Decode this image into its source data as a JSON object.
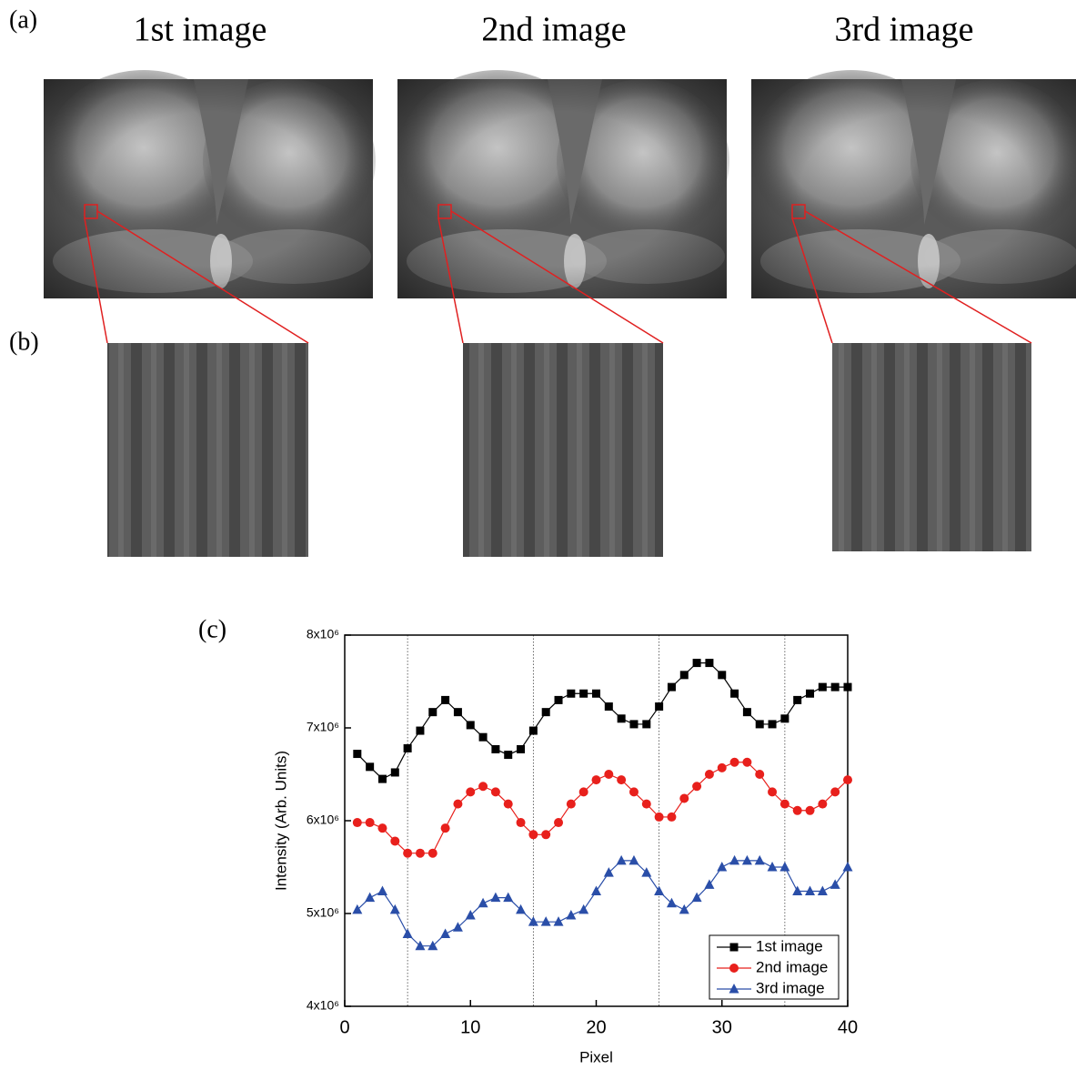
{
  "figure": {
    "panel_a": "(a)",
    "panel_b": "(b)",
    "panel_c": "(c)",
    "titles": [
      "1st image",
      "2nd image",
      "3rd image"
    ]
  },
  "chart_data": {
    "type": "line",
    "x_label": "Pixel",
    "y_label": "Intensity (Arb. Units)",
    "x": [
      1,
      2,
      3,
      4,
      5,
      6,
      7,
      8,
      9,
      10,
      11,
      12,
      13,
      14,
      15,
      16,
      17,
      18,
      19,
      20,
      21,
      22,
      23,
      24,
      25,
      26,
      27,
      28,
      29,
      30,
      31,
      32,
      33,
      34,
      35,
      36,
      37,
      38,
      39,
      40
    ],
    "series": [
      {
        "name": "1st image",
        "color": "#000000",
        "marker": "square",
        "values": [
          6720000,
          6580000,
          6450000,
          6520000,
          6780000,
          6970000,
          7170000,
          7300000,
          7170000,
          7030000,
          6900000,
          6770000,
          6710000,
          6770000,
          6970000,
          7170000,
          7300000,
          7370000,
          7370000,
          7370000,
          7230000,
          7100000,
          7040000,
          7040000,
          7230000,
          7440000,
          7570000,
          7700000,
          7700000,
          7570000,
          7370000,
          7170000,
          7040000,
          7040000,
          7100000,
          7300000,
          7370000,
          7440000,
          7440000,
          7440000
        ]
      },
      {
        "name": "2nd image",
        "color": "#e8201c",
        "marker": "circle",
        "values": [
          5980000,
          5980000,
          5920000,
          5780000,
          5650000,
          5650000,
          5650000,
          5920000,
          6180000,
          6310000,
          6370000,
          6310000,
          6180000,
          5980000,
          5850000,
          5850000,
          5980000,
          6180000,
          6310000,
          6440000,
          6500000,
          6440000,
          6310000,
          6180000,
          6040000,
          6040000,
          6240000,
          6370000,
          6500000,
          6570000,
          6630000,
          6630000,
          6500000,
          6310000,
          6180000,
          6110000,
          6110000,
          6180000,
          6310000,
          6440000
        ]
      },
      {
        "name": "3rd image",
        "color": "#2a4ea8",
        "marker": "triangle",
        "values": [
          5040000,
          5170000,
          5240000,
          5040000,
          4780000,
          4650000,
          4650000,
          4780000,
          4850000,
          4980000,
          5110000,
          5170000,
          5170000,
          5040000,
          4910000,
          4910000,
          4910000,
          4980000,
          5040000,
          5240000,
          5440000,
          5570000,
          5570000,
          5440000,
          5240000,
          5110000,
          5040000,
          5170000,
          5310000,
          5500000,
          5570000,
          5570000,
          5570000,
          5500000,
          5500000,
          5240000,
          5240000,
          5240000,
          5310000,
          5500000
        ]
      }
    ],
    "xlim": [
      0,
      40
    ],
    "xticks": [
      0,
      10,
      20,
      30,
      40
    ],
    "ylim": [
      4000000,
      8000000
    ],
    "yticks": [
      {
        "value": 4000000,
        "label": "4x10⁶"
      },
      {
        "value": 5000000,
        "label": "5x10⁶"
      },
      {
        "value": 6000000,
        "label": "6x10⁶"
      },
      {
        "value": 7000000,
        "label": "7x10⁶"
      },
      {
        "value": 8000000,
        "label": "8x10⁶"
      }
    ],
    "reference_lines_x": [
      5,
      15,
      25,
      35
    ],
    "legend": "lower right"
  }
}
